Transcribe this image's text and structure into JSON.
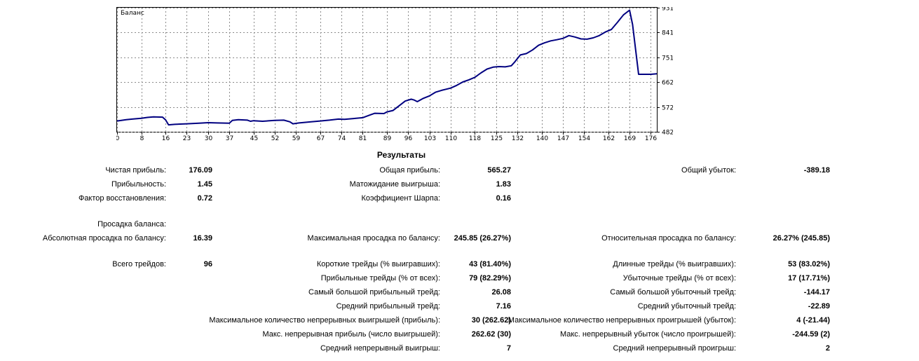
{
  "chart_data": {
    "type": "line",
    "title": "Баланс",
    "x_ticks": [
      0,
      8,
      16,
      23,
      30,
      37,
      45,
      52,
      59,
      67,
      74,
      81,
      89,
      96,
      103,
      110,
      118,
      125,
      132,
      140,
      147,
      154,
      162,
      169,
      176
    ],
    "y_ticks": [
      931,
      841,
      751,
      662,
      572,
      482
    ],
    "xlim": [
      0,
      178
    ],
    "ylim": [
      482,
      931
    ],
    "grid": true,
    "series": [
      {
        "color": "#000080",
        "x": [
          0,
          3,
          5,
          8,
          10,
          12,
          15,
          16,
          17,
          19,
          23,
          27,
          30,
          33,
          37,
          38,
          40,
          43,
          44,
          45,
          48,
          52,
          55,
          57,
          58,
          60,
          64,
          67,
          70,
          73,
          75,
          78,
          81,
          83,
          85,
          88,
          89,
          91,
          93,
          95,
          97,
          98,
          99,
          101,
          103,
          105,
          107,
          110,
          112,
          114,
          116,
          118,
          120,
          122,
          124,
          126,
          128,
          130,
          131,
          133,
          135,
          137,
          139,
          141,
          143,
          145,
          147,
          149,
          151,
          153,
          155,
          157,
          159,
          161,
          163,
          165,
          167,
          169,
          170,
          171,
          172,
          174,
          176,
          178
        ],
        "y": [
          521,
          526,
          528,
          531,
          534,
          536,
          535,
          525,
          507,
          509,
          511,
          513,
          515,
          514,
          513,
          523,
          526,
          524,
          520,
          522,
          520,
          523,
          524,
          518,
          511,
          514,
          518,
          521,
          524,
          528,
          527,
          530,
          533,
          541,
          549,
          548,
          554,
          559,
          576,
          593,
          600,
          597,
          591,
          603,
          612,
          625,
          632,
          640,
          650,
          662,
          670,
          679,
          695,
          709,
          716,
          718,
          717,
          721,
          733,
          760,
          765,
          778,
          795,
          804,
          811,
          815,
          820,
          830,
          825,
          818,
          817,
          822,
          830,
          843,
          852,
          878,
          905,
          922,
          870,
          780,
          690,
          690,
          690,
          692
        ]
      }
    ]
  },
  "report": {
    "title": "Результаты",
    "col1": [
      {
        "label": "Чистая прибыль:",
        "value": "176.09"
      },
      {
        "label": "Прибыльность:",
        "value": "1.45"
      },
      {
        "label": "Фактор восстановления:",
        "value": "0.72"
      },
      {
        "label": "Просадка баланса:",
        "value": ""
      },
      {
        "label": "Абсолютная просадка по балансу:",
        "value": "16.39"
      },
      {
        "label": "Всего трейдов:",
        "value": "96"
      }
    ],
    "col2": [
      {
        "label": "Общая прибыль:",
        "value": "565.27"
      },
      {
        "label": "Матожидание выигрыша:",
        "value": "1.83"
      },
      {
        "label": "Коэффициент Шарпа:",
        "value": "0.16"
      },
      {
        "label": "Максимальная просадка по балансу:",
        "value": "245.85 (26.27%)"
      },
      {
        "label": "Короткие трейды (% выигравших):",
        "value": "43 (81.40%)"
      },
      {
        "label": "Прибыльные трейды (% от всех):",
        "value": "79 (82.29%)"
      },
      {
        "label": "Самый большой прибыльный трейд:",
        "value": "26.08"
      },
      {
        "label": "Средний прибыльный трейд:",
        "value": "7.16"
      },
      {
        "label": "Максимальное количество непрерывных выигрышей (прибыль):",
        "value": "30 (262.62)"
      },
      {
        "label": "Макс. непрерывная прибыль (число выигрышей):",
        "value": "262.62 (30)"
      },
      {
        "label": "Средний непрерывный выигрыш:",
        "value": "7"
      }
    ],
    "col3": [
      {
        "label": "Общий убыток:",
        "value": "-389.18"
      },
      {
        "label": "Относительная просадка по балансу:",
        "value": "26.27% (245.85)"
      },
      {
        "label": "Длинные трейды (% выигравших):",
        "value": "53 (83.02%)"
      },
      {
        "label": "Убыточные трейды (% от всех):",
        "value": "17 (17.71%)"
      },
      {
        "label": "Самый большой убыточный трейд:",
        "value": "-144.17"
      },
      {
        "label": "Средний убыточный трейд:",
        "value": "-22.89"
      },
      {
        "label": "Максимальное количество непрерывных проигрышей (убыток):",
        "value": "4 (-21.44)"
      },
      {
        "label": "Макс. непрерывный убыток (число проигрышей):",
        "value": "-244.59 (2)"
      },
      {
        "label": "Средний непрерывный проигрыш:",
        "value": "2"
      }
    ]
  }
}
